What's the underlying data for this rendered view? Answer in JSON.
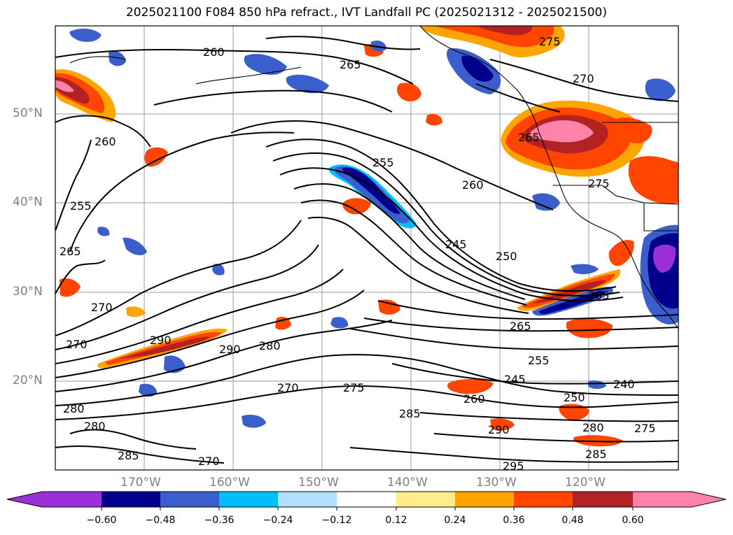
{
  "title": "2025021100 F084 850 hPa refract., IVT Landfall PC (2025021312 - 2025021500)",
  "axes": {
    "lat_labels": [
      "50°N",
      "40°N",
      "30°N",
      "20°N"
    ],
    "lon_labels": [
      "170°W",
      "160°W",
      "150°W",
      "140°W",
      "130°W",
      "120°W"
    ]
  },
  "colorbar": {
    "tick_labels": [
      "−0.60",
      "−0.48",
      "−0.36",
      "−0.24",
      "−0.12",
      "0.12",
      "0.24",
      "0.36",
      "0.48",
      "0.60"
    ],
    "colors": [
      "#9b30d9",
      "#00008b",
      "#3a5fcd",
      "#00bfff",
      "#b0e2ff",
      "#ffffff",
      "#ffec8b",
      "#ffa500",
      "#ff4500",
      "#b22222",
      "#ff82ab"
    ],
    "extend": "both"
  },
  "contour_labels": [
    "260",
    "265",
    "270",
    "275",
    "255",
    "260",
    "250",
    "245",
    "255",
    "265",
    "270",
    "260",
    "265",
    "270",
    "275",
    "280",
    "285",
    "290",
    "295",
    "240",
    "250",
    "255",
    "245",
    "260",
    "265",
    "275",
    "280",
    "285",
    "270",
    "275",
    "280",
    "285",
    "290",
    "280",
    "290",
    "270",
    "265"
  ],
  "fill_colors": {
    "positive_strong": "#ff82ab",
    "positive_high": "#b22222",
    "positive_mid": "#ff4500",
    "positive_low": "#ffa500",
    "positive_weak": "#ffec8b",
    "negative_weak": "#b0e2ff",
    "negative_low": "#00bfff",
    "negative_mid": "#3a5fcd",
    "negative_high": "#00008b",
    "negative_strong": "#9b30d9"
  }
}
